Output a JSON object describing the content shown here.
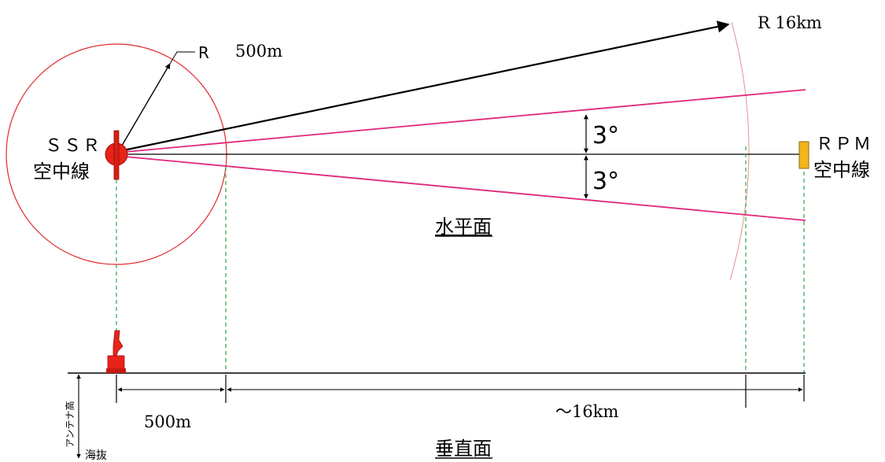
{
  "horizontal_plane": {
    "radius_label": "R",
    "radius_value": "500m",
    "range_label": "R 16km",
    "ssr": {
      "line1": "ＳＳＲ",
      "line2": "空中線"
    },
    "rpm": {
      "line1": "ＲＰＭ",
      "line2": "空中線"
    },
    "angle_upper": "3°",
    "angle_lower": "3°",
    "section_title": "水平面"
  },
  "vertical_plane": {
    "dim_near": "500m",
    "dim_far": "～16km",
    "antenna_height_label": "アンテナ高",
    "sea_level_label": "海抜",
    "section_title": "垂直面"
  },
  "colors": {
    "circle": "#e0282e",
    "beam": "#e0287a",
    "guide": "#2aa84a",
    "ssr_body": "#e8231a",
    "rpm_body": "#f2b51c"
  }
}
